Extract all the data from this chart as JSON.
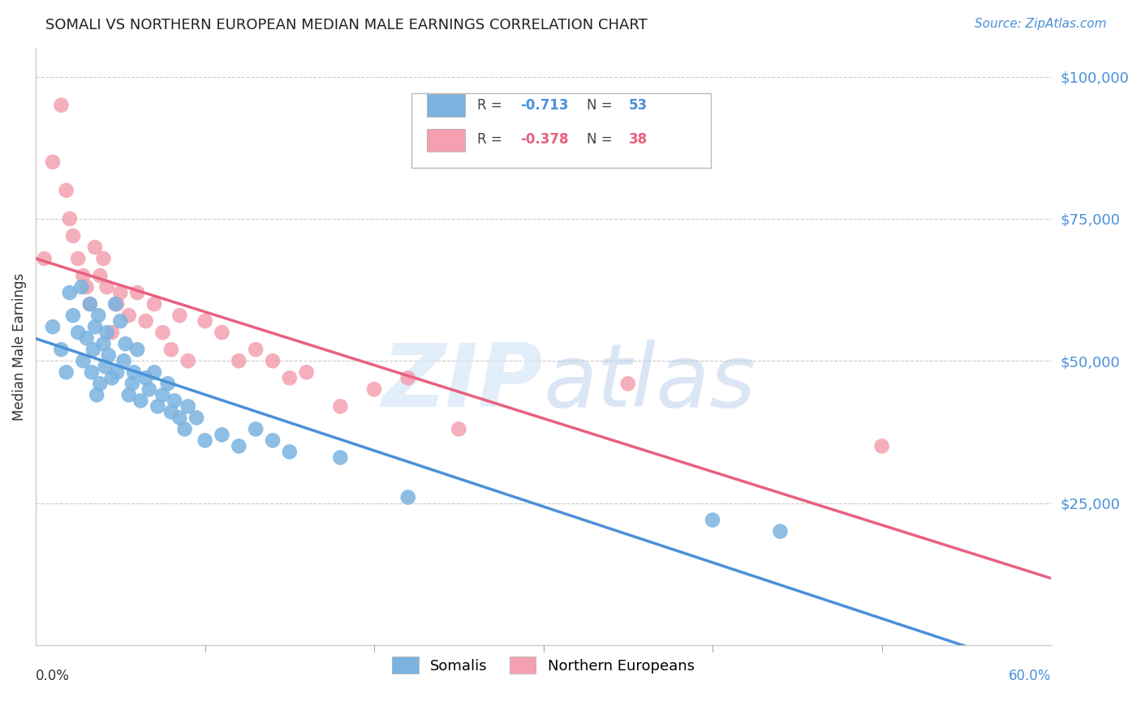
{
  "title": "SOMALI VS NORTHERN EUROPEAN MEDIAN MALE EARNINGS CORRELATION CHART",
  "source": "Source: ZipAtlas.com",
  "ylabel": "Median Male Earnings",
  "ytick_labels": [
    "$25,000",
    "$50,000",
    "$75,000",
    "$100,000"
  ],
  "ytick_values": [
    25000,
    50000,
    75000,
    100000
  ],
  "ymin": 0,
  "ymax": 105000,
  "xmin": 0.0,
  "xmax": 0.6,
  "background_color": "#ffffff",
  "watermark_zip": "ZIP",
  "watermark_atlas": "atlas",
  "legend_somali_R": "-0.713",
  "legend_somali_N": "53",
  "legend_northern_R": "-0.378",
  "legend_northern_N": "38",
  "somali_color": "#7ab3e0",
  "somali_color_dark": "#4a90d9",
  "northern_color": "#f4a0b0",
  "northern_color_dark": "#e86080",
  "somali_scatter_x": [
    0.01,
    0.015,
    0.018,
    0.02,
    0.022,
    0.025,
    0.027,
    0.028,
    0.03,
    0.032,
    0.033,
    0.034,
    0.035,
    0.036,
    0.037,
    0.038,
    0.04,
    0.041,
    0.042,
    0.043,
    0.045,
    0.047,
    0.048,
    0.05,
    0.052,
    0.053,
    0.055,
    0.057,
    0.058,
    0.06,
    0.062,
    0.065,
    0.067,
    0.07,
    0.072,
    0.075,
    0.078,
    0.08,
    0.082,
    0.085,
    0.088,
    0.09,
    0.095,
    0.1,
    0.11,
    0.12,
    0.13,
    0.14,
    0.15,
    0.18,
    0.22,
    0.4,
    0.44
  ],
  "somali_scatter_y": [
    56000,
    52000,
    48000,
    62000,
    58000,
    55000,
    63000,
    50000,
    54000,
    60000,
    48000,
    52000,
    56000,
    44000,
    58000,
    46000,
    53000,
    49000,
    55000,
    51000,
    47000,
    60000,
    48000,
    57000,
    50000,
    53000,
    44000,
    46000,
    48000,
    52000,
    43000,
    47000,
    45000,
    48000,
    42000,
    44000,
    46000,
    41000,
    43000,
    40000,
    38000,
    42000,
    40000,
    36000,
    37000,
    35000,
    38000,
    36000,
    34000,
    33000,
    26000,
    22000,
    20000
  ],
  "northern_scatter_x": [
    0.005,
    0.01,
    0.015,
    0.018,
    0.02,
    0.022,
    0.025,
    0.028,
    0.03,
    0.032,
    0.035,
    0.038,
    0.04,
    0.042,
    0.045,
    0.048,
    0.05,
    0.055,
    0.06,
    0.065,
    0.07,
    0.075,
    0.08,
    0.085,
    0.09,
    0.1,
    0.11,
    0.12,
    0.13,
    0.14,
    0.15,
    0.16,
    0.18,
    0.2,
    0.22,
    0.25,
    0.35,
    0.5
  ],
  "northern_scatter_y": [
    68000,
    85000,
    95000,
    80000,
    75000,
    72000,
    68000,
    65000,
    63000,
    60000,
    70000,
    65000,
    68000,
    63000,
    55000,
    60000,
    62000,
    58000,
    62000,
    57000,
    60000,
    55000,
    52000,
    58000,
    50000,
    57000,
    55000,
    50000,
    52000,
    50000,
    47000,
    48000,
    42000,
    45000,
    47000,
    38000,
    46000,
    35000
  ],
  "grid_color": "#cccccc",
  "title_fontsize": 13,
  "axis_label_color": "#4a90d9",
  "tick_label_color": "#333333"
}
